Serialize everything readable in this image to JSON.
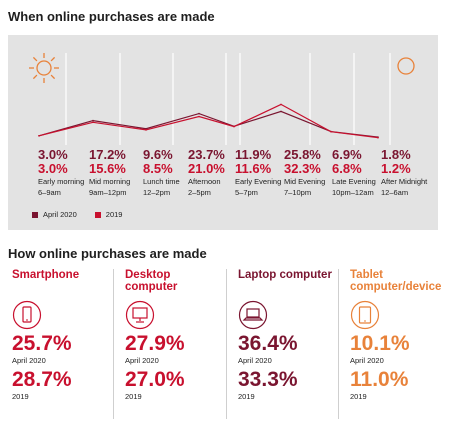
{
  "section1_title": "When online purchases are made",
  "section2_title": "How online purchases are made",
  "colors": {
    "april2020": "#7a1530",
    "y2019": "#c8102e",
    "sun": "#e8823a",
    "panel": "#e3e3e3"
  },
  "chart_data": {
    "type": "line",
    "title": "When online purchases are made",
    "categories": [
      "Early morning",
      "Mid morning",
      "Lunch time",
      "Afternoon",
      "Early Evening",
      "Mid Evening",
      "Late Evening",
      "After Midnight"
    ],
    "times": [
      "6–9am",
      "9am–12pm",
      "12–2pm",
      "2–5pm",
      "5–7pm",
      "7–10pm",
      "10pm–12am",
      "12–6am"
    ],
    "series": [
      {
        "name": "April 2020",
        "values": [
          3.0,
          17.2,
          9.6,
          23.7,
          11.9,
          25.8,
          6.9,
          1.8
        ],
        "labels": [
          "3.0%",
          "17.2%",
          "9.6%",
          "23.7%",
          "11.9%",
          "25.8%",
          "6.9%",
          "1.8%"
        ]
      },
      {
        "name": "2019",
        "values": [
          3.0,
          15.6,
          8.5,
          21.0,
          11.6,
          32.3,
          6.8,
          1.2
        ],
        "labels": [
          "3.0%",
          "15.6%",
          "8.5%",
          "21.0%",
          "11.6%",
          "32.3%",
          "6.8%",
          "1.2%"
        ]
      }
    ],
    "legend": [
      "April 2020",
      "2019"
    ],
    "legend_position": "bottom-left"
  },
  "devices": [
    {
      "name": "Smartphone",
      "icon": "smartphone-icon",
      "color": "#c8102e",
      "april2020": "25.7%",
      "y2019": "28.7%",
      "value_2020": 25.7,
      "value_2019": 28.7
    },
    {
      "name": "Desktop computer",
      "icon": "desktop-computer-icon",
      "color": "#c8102e",
      "april2020": "27.9%",
      "y2019": "27.0%",
      "value_2020": 27.9,
      "value_2019": 27.0
    },
    {
      "name": "Laptop computer",
      "icon": "laptop-icon",
      "color": "#7a1530",
      "april2020": "36.4%",
      "y2019": "33.3%",
      "value_2020": 36.4,
      "value_2019": 33.3
    },
    {
      "name": "Tablet computer/device",
      "icon": "tablet-icon",
      "color": "#e8823a",
      "april2020": "10.1%",
      "y2019": "11.0%",
      "value_2020": 10.1,
      "value_2019": 11.0
    }
  ],
  "labels": {
    "april2020": "April 2020",
    "y2019": "2019"
  }
}
